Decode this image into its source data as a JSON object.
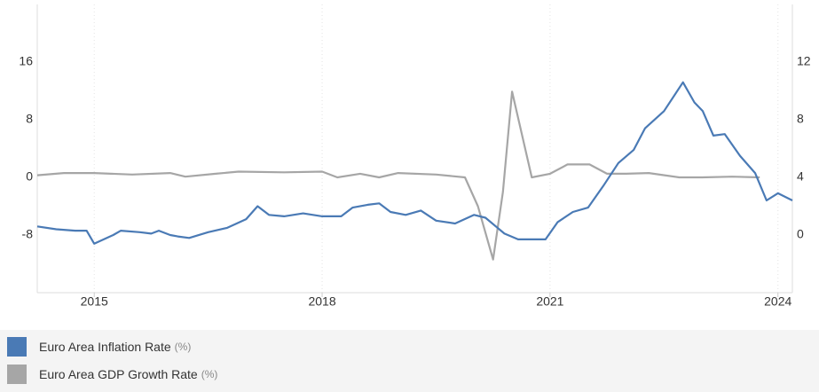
{
  "chart_data": {
    "type": "line",
    "xlim": [
      2014.25,
      2024.19
    ],
    "xticks": [
      2015,
      2018,
      2021,
      2024
    ],
    "ylim": [
      -16,
      24
    ],
    "yticks": [
      -8,
      0,
      8,
      16
    ],
    "y2lim": [
      -4,
      16
    ],
    "y2ticks": [
      0,
      4,
      8,
      12
    ],
    "grid": true,
    "series": [
      {
        "name": "Euro Area Inflation Rate",
        "unit": "(%)",
        "color": "#4a7ab5",
        "axis": "y2",
        "x": [
          2014.25,
          2014.5,
          2014.75,
          2014.9,
          2015.0,
          2015.25,
          2015.35,
          2015.6,
          2015.75,
          2015.85,
          2016.0,
          2016.1,
          2016.25,
          2016.5,
          2016.75,
          2017.0,
          2017.15,
          2017.3,
          2017.5,
          2017.75,
          2018.0,
          2018.25,
          2018.4,
          2018.6,
          2018.75,
          2018.9,
          2019.1,
          2019.3,
          2019.5,
          2019.75,
          2020.0,
          2020.15,
          2020.4,
          2020.58,
          2020.94,
          2021.1,
          2021.3,
          2021.5,
          2021.7,
          2021.9,
          2022.1,
          2022.25,
          2022.5,
          2022.75,
          2022.9,
          2023.01,
          2023.15,
          2023.3,
          2023.5,
          2023.7,
          2023.85,
          2024.0,
          2024.19
        ],
        "values": [
          0.6,
          0.4,
          0.3,
          0.3,
          -0.6,
          0.0,
          0.3,
          0.2,
          0.1,
          0.3,
          0.0,
          -0.1,
          -0.2,
          0.2,
          0.5,
          1.1,
          2.0,
          1.4,
          1.3,
          1.5,
          1.3,
          1.3,
          1.9,
          2.1,
          2.2,
          1.6,
          1.4,
          1.7,
          1.0,
          0.8,
          1.4,
          1.2,
          0.1,
          -0.3,
          -0.3,
          0.9,
          1.6,
          1.9,
          3.4,
          5.0,
          5.9,
          7.4,
          8.6,
          10.6,
          9.2,
          8.6,
          6.9,
          7.0,
          5.5,
          4.3,
          2.4,
          2.9,
          2.4
        ]
      },
      {
        "name": "Euro Area GDP Growth Rate",
        "unit": "(%)",
        "color": "#a6a6a6",
        "x": [
          2014.25,
          2014.6,
          2015.0,
          2015.5,
          2016.0,
          2016.2,
          2016.6,
          2016.9,
          2017.5,
          2018.0,
          2018.2,
          2018.5,
          2018.75,
          2019.0,
          2019.5,
          2019.88,
          2020.05,
          2020.25,
          2020.38,
          2020.5,
          2020.76,
          2021.0,
          2021.23,
          2021.52,
          2021.75,
          2022.0,
          2022.3,
          2022.7,
          2023.0,
          2023.4,
          2023.76
        ],
        "values": [
          0.3,
          0.6,
          0.6,
          0.4,
          0.6,
          0.1,
          0.5,
          0.8,
          0.7,
          0.8,
          0.0,
          0.5,
          0.0,
          0.6,
          0.4,
          0.0,
          -4.0,
          -11.4,
          -2.0,
          11.9,
          0.0,
          0.5,
          1.8,
          1.8,
          0.5,
          0.5,
          0.6,
          0.0,
          0.0,
          0.1,
          0.0
        ]
      }
    ]
  }
}
